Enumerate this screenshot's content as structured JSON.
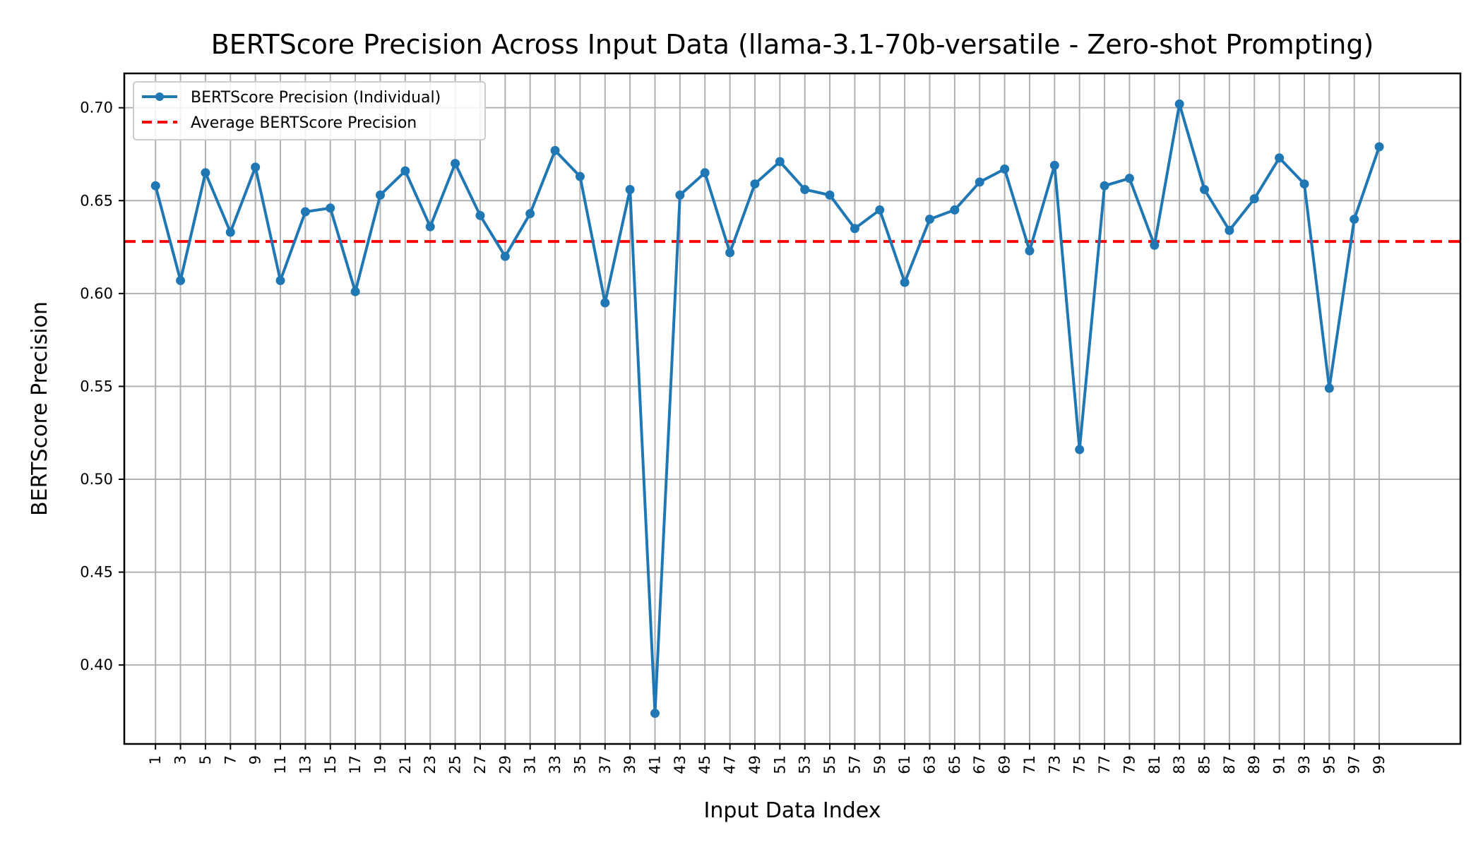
{
  "chart_data": {
    "type": "line",
    "title": "BERTScore Precision Across Input Data (llama-3.1-70b-versatile - Zero-shot Prompting)",
    "xlabel": "Input Data Index",
    "ylabel": "BERTScore Precision",
    "xlim": [
      -1.5,
      105.5
    ],
    "ylim": [
      0.3575,
      0.7185
    ],
    "yticks": [
      0.4,
      0.45,
      0.5,
      0.55,
      0.6,
      0.65,
      0.7
    ],
    "ytick_labels": [
      "0.40",
      "0.45",
      "0.50",
      "0.55",
      "0.60",
      "0.65",
      "0.70"
    ],
    "xticks": [
      1,
      3,
      5,
      7,
      9,
      11,
      13,
      15,
      17,
      19,
      21,
      23,
      25,
      27,
      29,
      31,
      33,
      35,
      37,
      39,
      41,
      43,
      45,
      47,
      49,
      51,
      53,
      55,
      57,
      59,
      61,
      63,
      65,
      67,
      69,
      71,
      73,
      75,
      77,
      79,
      81,
      83,
      85,
      87,
      89,
      91,
      93,
      95,
      97,
      99
    ],
    "xtick_labels": [
      "1",
      "3",
      "5",
      "7",
      "9",
      "11",
      "13",
      "15",
      "17",
      "19",
      "21",
      "23",
      "25",
      "27",
      "29",
      "31",
      "33",
      "35",
      "37",
      "39",
      "41",
      "43",
      "45",
      "47",
      "49",
      "51",
      "53",
      "55",
      "57",
      "59",
      "61",
      "63",
      "65",
      "67",
      "69",
      "71",
      "73",
      "75",
      "77",
      "79",
      "81",
      "83",
      "85",
      "87",
      "89",
      "91",
      "93",
      "95",
      "97",
      "99"
    ],
    "grid": true,
    "legend_position": "top-left",
    "series": [
      {
        "name": "BERTScore Precision (Individual)",
        "style": "line-with-markers",
        "color": "#1f77b4",
        "x": [
          1,
          3,
          5,
          7,
          9,
          11,
          13,
          15,
          17,
          19,
          21,
          23,
          25,
          27,
          29,
          31,
          33,
          35,
          37,
          39,
          41,
          43,
          45,
          47,
          49,
          51,
          53,
          55,
          57,
          59,
          61,
          63,
          65,
          67,
          69,
          71,
          73,
          75,
          77,
          79,
          81,
          83,
          85,
          87,
          89,
          91,
          93,
          95,
          97,
          99
        ],
        "y": [
          0.658,
          0.607,
          0.665,
          0.633,
          0.668,
          0.607,
          0.644,
          0.646,
          0.601,
          0.653,
          0.666,
          0.636,
          0.67,
          0.642,
          0.62,
          0.643,
          0.677,
          0.663,
          0.595,
          0.656,
          0.374,
          0.653,
          0.665,
          0.622,
          0.659,
          0.671,
          0.656,
          0.653,
          0.635,
          0.645,
          0.606,
          0.64,
          0.645,
          0.66,
          0.667,
          0.623,
          0.669,
          0.516,
          0.658,
          0.662,
          0.626,
          0.702,
          0.656,
          0.634,
          0.651,
          0.673,
          0.659,
          0.549,
          0.64,
          0.679
        ]
      },
      {
        "name": "Average BERTScore Precision",
        "style": "dashed-horizontal",
        "color": "#ff0000",
        "y": 0.628
      }
    ]
  }
}
